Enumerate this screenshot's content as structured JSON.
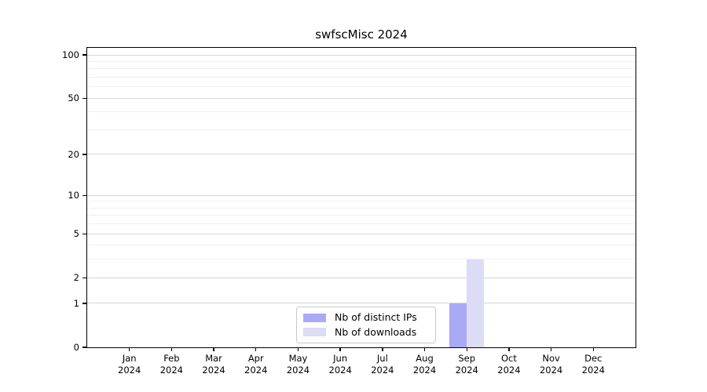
{
  "chart_data": {
    "type": "bar",
    "title": "swfscMisc 2024",
    "x": {
      "months": [
        "Jan",
        "Feb",
        "Mar",
        "Apr",
        "May",
        "Jun",
        "Jul",
        "Aug",
        "Sep",
        "Oct",
        "Nov",
        "Dec"
      ],
      "year": "2024"
    },
    "series": [
      {
        "name": "Nb of distinct IPs",
        "color": "#a9a9f5",
        "values": [
          0,
          0,
          0,
          0,
          0,
          0,
          0,
          0,
          1,
          0,
          0,
          0
        ]
      },
      {
        "name": "Nb of downloads",
        "color": "#dcdcf7",
        "values": [
          0,
          0,
          0,
          0,
          0,
          0,
          0,
          0,
          3,
          0,
          0,
          0
        ]
      }
    ],
    "y_axis": {
      "scale": "log1p",
      "major_ticks": [
        0,
        1,
        2,
        5,
        10,
        20,
        50,
        100
      ],
      "minor_gridlines": [
        3,
        4,
        6,
        7,
        8,
        9,
        30,
        40,
        60,
        70,
        80,
        90
      ],
      "ylim": [
        0,
        112
      ]
    },
    "legend": {
      "position": "lower center inside"
    },
    "grid": "on"
  }
}
